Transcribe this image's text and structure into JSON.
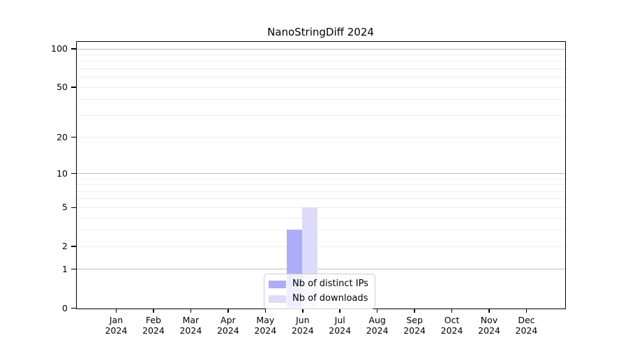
{
  "title": "NanoStringDiff 2024",
  "chart_data": {
    "type": "bar",
    "title": "NanoStringDiff 2024",
    "categories": [
      "Jan 2024",
      "Feb 2024",
      "Mar 2024",
      "Apr 2024",
      "May 2024",
      "Jun 2024",
      "Jul 2024",
      "Aug 2024",
      "Sep 2024",
      "Oct 2024",
      "Nov 2024",
      "Dec 2024"
    ],
    "x_tick_months": [
      "Jan",
      "Feb",
      "Mar",
      "Apr",
      "May",
      "Jun",
      "Jul",
      "Aug",
      "Sep",
      "Oct",
      "Nov",
      "Dec"
    ],
    "x_tick_year": "2024",
    "series": [
      {
        "name": "Nb of distinct IPs",
        "color": "#acacf8",
        "values": [
          0,
          0,
          0,
          0,
          0,
          3,
          0,
          0,
          0,
          0,
          0,
          0
        ]
      },
      {
        "name": "Nb of downloads",
        "color": "#dcdcf8",
        "values": [
          0,
          0,
          0,
          0,
          0,
          5,
          0,
          0,
          0,
          0,
          0,
          0
        ]
      }
    ],
    "y_scale": "log1p",
    "ylim": [
      0,
      113
    ],
    "y_ticks": [
      0,
      1,
      2,
      5,
      10,
      20,
      50,
      100
    ],
    "y_major_grid": [
      1,
      10,
      100
    ],
    "y_minor_grid": [
      2,
      3,
      4,
      5,
      6,
      7,
      8,
      9,
      20,
      30,
      40,
      50,
      60,
      70,
      80,
      90
    ],
    "grid": true,
    "legend_position": "bottom-center",
    "colors": {
      "major_grid": "#bdbdbd",
      "minor_grid": "#ededed",
      "axis": "#000000",
      "background": "#ffffff"
    }
  }
}
